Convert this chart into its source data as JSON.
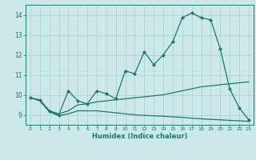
{
  "xlabel": "Humidex (Indice chaleur)",
  "bg_color": "#cce8e8",
  "line_color": "#1a7a6e",
  "grid_color": "#aacfcf",
  "xlim": [
    -0.5,
    23.5
  ],
  "ylim": [
    8.5,
    14.5
  ],
  "xticks": [
    0,
    1,
    2,
    3,
    4,
    5,
    6,
    7,
    8,
    9,
    10,
    11,
    12,
    13,
    14,
    15,
    16,
    17,
    18,
    19,
    20,
    21,
    22,
    23
  ],
  "yticks": [
    9,
    10,
    11,
    12,
    13,
    14
  ],
  "line1_x": [
    0,
    1,
    2,
    3,
    4,
    5,
    6,
    7,
    8,
    9,
    10,
    11,
    12,
    13,
    14,
    15,
    16,
    17,
    18,
    19,
    20,
    21,
    22,
    23
  ],
  "line1_y": [
    9.85,
    9.75,
    9.2,
    9.0,
    10.2,
    9.7,
    9.55,
    10.2,
    10.05,
    9.8,
    11.2,
    11.05,
    12.15,
    11.5,
    12.0,
    12.65,
    13.85,
    14.1,
    13.85,
    13.75,
    12.3,
    10.3,
    9.35,
    8.75
  ],
  "line2_x": [
    0,
    1,
    2,
    3,
    4,
    5,
    6,
    7,
    8,
    9,
    10,
    11,
    12,
    13,
    14,
    15,
    16,
    17,
    18,
    19,
    20,
    21,
    22,
    23
  ],
  "line2_y": [
    9.85,
    9.72,
    9.2,
    9.05,
    9.2,
    9.5,
    9.55,
    9.65,
    9.7,
    9.75,
    9.8,
    9.85,
    9.9,
    9.95,
    10.0,
    10.1,
    10.2,
    10.3,
    10.4,
    10.45,
    10.5,
    10.55,
    10.6,
    10.65
  ],
  "line3_x": [
    0,
    1,
    2,
    3,
    4,
    5,
    6,
    7,
    8,
    9,
    10,
    11,
    12,
    13,
    14,
    15,
    16,
    17,
    18,
    19,
    20,
    21,
    22,
    23
  ],
  "line3_y": [
    9.85,
    9.7,
    9.15,
    8.95,
    9.05,
    9.2,
    9.2,
    9.2,
    9.15,
    9.1,
    9.05,
    9.0,
    8.97,
    8.95,
    8.93,
    8.9,
    8.87,
    8.83,
    8.8,
    8.77,
    8.75,
    8.72,
    8.7,
    8.67
  ]
}
